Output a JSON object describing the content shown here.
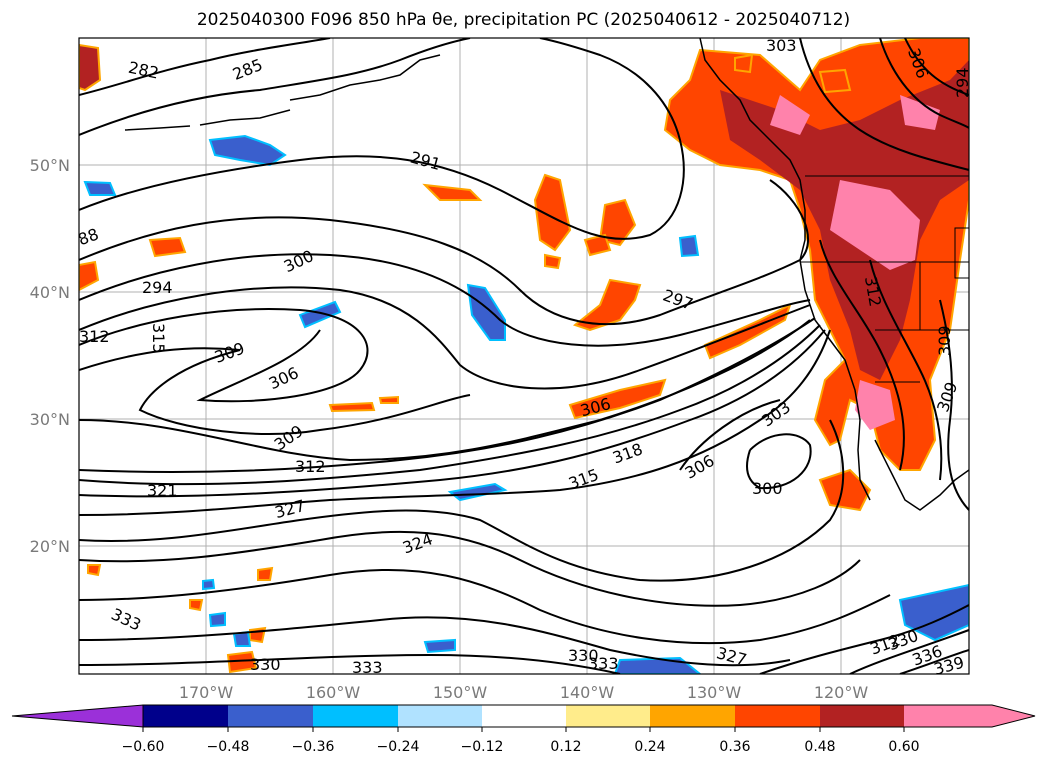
{
  "title": "2025040300 F096 850 hPa θe, precipitation PC (2025040612 - 2025040712)",
  "map": {
    "lon_ticks": [
      "170°W",
      "160°W",
      "150°W",
      "140°W",
      "130°W",
      "120°W"
    ],
    "lat_ticks": [
      "50°N",
      "40°N",
      "30°N",
      "20°N"
    ],
    "lon_range": [
      -180,
      -110
    ],
    "lat_range": [
      10,
      60
    ],
    "grid": true
  },
  "contour_labels": [
    {
      "text": "282"
    },
    {
      "text": "285"
    },
    {
      "text": "291"
    },
    {
      "text": "303"
    },
    {
      "text": "306"
    },
    {
      "text": "294"
    },
    {
      "text": "300"
    },
    {
      "text": "294"
    },
    {
      "text": "297"
    },
    {
      "text": "312"
    },
    {
      "text": "315"
    },
    {
      "text": "309"
    },
    {
      "text": "306"
    },
    {
      "text": "309"
    },
    {
      "text": "306"
    },
    {
      "text": "318"
    },
    {
      "text": "315"
    },
    {
      "text": "303"
    },
    {
      "text": "306"
    },
    {
      "text": "300"
    },
    {
      "text": "312"
    },
    {
      "text": "321"
    },
    {
      "text": "327"
    },
    {
      "text": "324"
    },
    {
      "text": "333"
    },
    {
      "text": "330"
    },
    {
      "text": "333"
    },
    {
      "text": "330"
    },
    {
      "text": "333"
    },
    {
      "text": "327"
    },
    {
      "text": "330"
    },
    {
      "text": "336"
    },
    {
      "text": "339"
    },
    {
      "text": "312"
    },
    {
      "text": "309"
    },
    {
      "text": "309"
    },
    {
      "text": "88"
    },
    {
      "text": "312"
    }
  ],
  "colorbar": {
    "ticks": [
      "−0.60",
      "−0.48",
      "−0.36",
      "−0.24",
      "−0.12",
      "0.12",
      "0.24",
      "0.36",
      "0.48",
      "0.60"
    ],
    "colors": [
      "#9b30d9",
      "#00008b",
      "#3a5fcd",
      "#00bfff",
      "#b0e2ff",
      "#ffffff",
      "#ffec8b",
      "#ffa500",
      "#ff4500",
      "#b22222",
      "#ff82ab",
      "#ff82ab"
    ]
  },
  "colors": {
    "positive_precip": "#ff4500",
    "negative_precip": "#3a5fcd",
    "contour": "#000000"
  }
}
